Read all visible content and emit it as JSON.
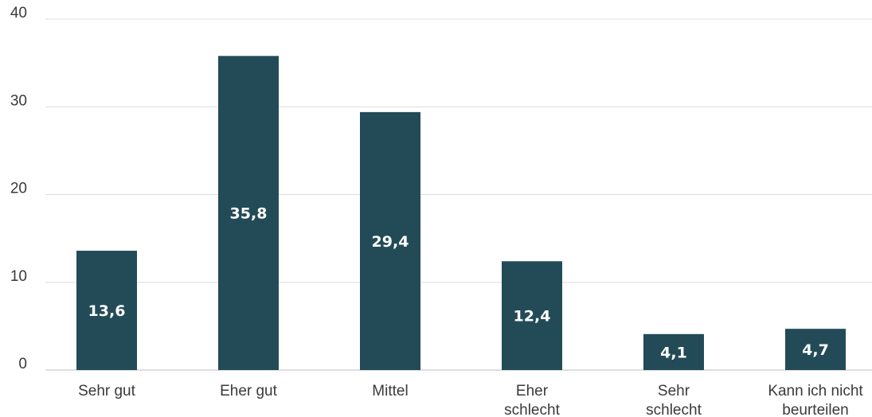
{
  "chart_data": {
    "type": "bar",
    "categories": [
      [
        "Sehr gut"
      ],
      [
        "Eher gut"
      ],
      [
        "Mittel"
      ],
      [
        "Eher",
        "schlecht"
      ],
      [
        "Sehr",
        "schlecht"
      ],
      [
        "Kann ich nicht",
        "beurteilen"
      ]
    ],
    "values": [
      13.6,
      35.8,
      29.4,
      12.4,
      4.1,
      4.7
    ],
    "value_labels": [
      "13,6",
      "35,8",
      "29,4",
      "12,4",
      "4,1",
      "4,7"
    ],
    "ylim": [
      0,
      40
    ],
    "yticks": [
      0,
      10,
      20,
      30,
      40
    ],
    "grid": true,
    "bar_color": "#234b57"
  }
}
